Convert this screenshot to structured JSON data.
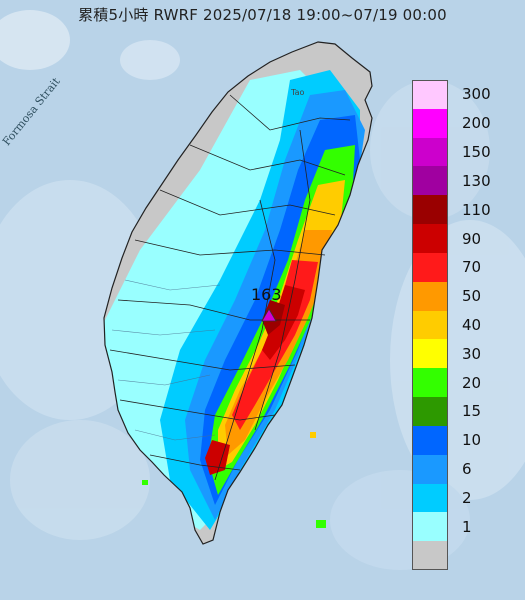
{
  "header": {
    "title": "累積5小時 RWRF 2025/07/18 19:00~07/19 00:00"
  },
  "map": {
    "sea_label": "Formosa Strait",
    "city_label": "Tao",
    "max_marker_value": "163",
    "max_marker_color": "#d400d4"
  },
  "legend": {
    "items": [
      {
        "label": "300",
        "color": "#ffc8ff"
      },
      {
        "label": "200",
        "color": "#ff00ff"
      },
      {
        "label": "150",
        "color": "#cc00cc"
      },
      {
        "label": "130",
        "color": "#a000a0"
      },
      {
        "label": "110",
        "color": "#9a0000"
      },
      {
        "label": "90",
        "color": "#cc0000"
      },
      {
        "label": "70",
        "color": "#ff1a1a"
      },
      {
        "label": "50",
        "color": "#ff9900"
      },
      {
        "label": "40",
        "color": "#ffcc00"
      },
      {
        "label": "30",
        "color": "#ffff00"
      },
      {
        "label": "20",
        "color": "#33ff00"
      },
      {
        "label": "15",
        "color": "#2d9900"
      },
      {
        "label": "10",
        "color": "#0066ff"
      },
      {
        "label": "6",
        "color": "#1a99ff"
      },
      {
        "label": "2",
        "color": "#00ccff"
      },
      {
        "label": "1",
        "color": "#99ffff"
      },
      {
        "label": "",
        "color": "#c8c8c8"
      }
    ]
  },
  "colors": {
    "sea": "#b9d3e8",
    "land_gray": "#c8c8c8",
    "border": "#222222"
  }
}
